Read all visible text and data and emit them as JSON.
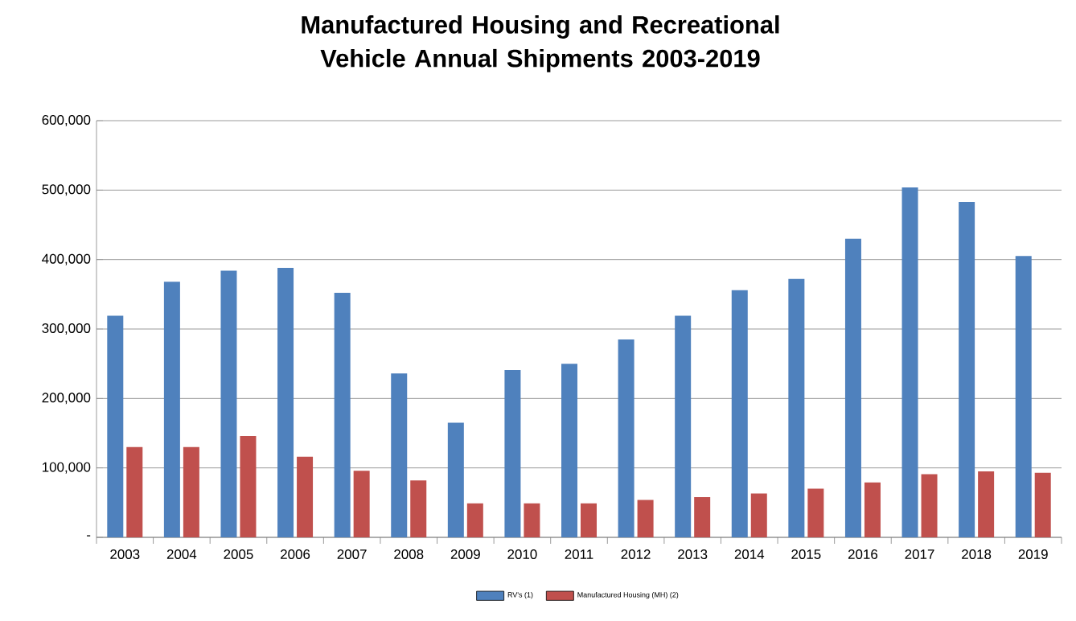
{
  "chart_data": {
    "type": "bar",
    "title": "Manufactured Housing and Recreational Vehicle Annual Shipments 2003-2019",
    "categories": [
      "2003",
      "2004",
      "2005",
      "2006",
      "2007",
      "2008",
      "2009",
      "2010",
      "2011",
      "2012",
      "2013",
      "2014",
      "2015",
      "2016",
      "2017",
      "2018",
      "2019"
    ],
    "series": [
      {
        "name": "RV's (1)",
        "color": "#4f81bd",
        "values": [
          319000,
          368000,
          384000,
          388000,
          352000,
          236000,
          165000,
          241000,
          250000,
          285000,
          319000,
          356000,
          372000,
          430000,
          504000,
          483000,
          405000
        ]
      },
      {
        "name": "Manufactured Housing (MH) (2)",
        "color": "#c0504d",
        "values": [
          130000,
          130000,
          146000,
          116000,
          96000,
          82000,
          49000,
          49000,
          49000,
          54000,
          58000,
          63000,
          70000,
          79000,
          91000,
          95000,
          93000
        ]
      }
    ],
    "ylim": [
      0,
      600000
    ],
    "yticks": [
      {
        "value": 0,
        "label": "-"
      },
      {
        "value": 100000,
        "label": "100,000"
      },
      {
        "value": 200000,
        "label": "200,000"
      },
      {
        "value": 300000,
        "label": "300,000"
      },
      {
        "value": 400000,
        "label": "400,000"
      },
      {
        "value": 500000,
        "label": "500,000"
      },
      {
        "value": 600000,
        "label": "600,000"
      }
    ],
    "grid": "y",
    "legend": "bottom"
  }
}
